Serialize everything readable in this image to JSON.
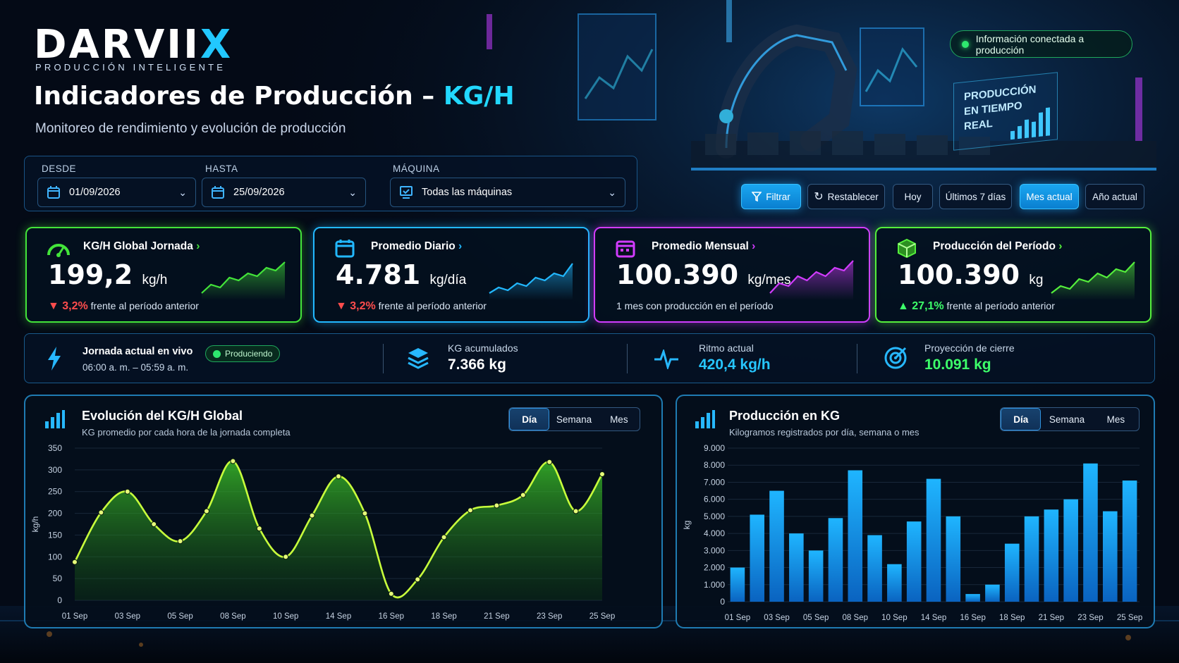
{
  "header": {
    "logo_main": "DARVII",
    "logo_accent": "X",
    "logo_tagline": "PRODUCCIÓN INTELIGENTE",
    "title_main": "Indicadores de Producción – ",
    "title_accent": "KG/H",
    "subtitle": "Monitoreo de rendimiento y evolución de producción",
    "status": "Información conectada a producción",
    "holo_line1": "PRODUCCIÓN",
    "holo_line2": "EN TIEMPO REAL"
  },
  "filters": {
    "desde_label": "DESDE",
    "desde_value": "01/09/2026",
    "hasta_label": "HASTA",
    "hasta_value": "25/09/2026",
    "maquina_label": "MÁQUINA",
    "maquina_value": "Todas las máquinas"
  },
  "buttons": {
    "filtrar": "Filtrar",
    "restablecer": "Restablecer",
    "hoy": "Hoy",
    "ultimos7": "Últimos 7 días",
    "mes_actual": "Mes actual",
    "anio_actual": "Año actual",
    "active": "Mes actual"
  },
  "kpis": [
    {
      "title": "KG/H Global Jornada",
      "value": "199,2",
      "unit": "kg/h",
      "delta": "▼ 3,2%",
      "delta_dir": "down",
      "note": "frente al período anterior",
      "color": "#43e43a",
      "icon": "gauge-icon"
    },
    {
      "title": "Promedio Diario",
      "value": "4.781",
      "unit": "kg/día",
      "delta": "▼ 3,2%",
      "delta_dir": "down",
      "note": "frente al período anterior",
      "color": "#22b8ff",
      "icon": "calendar-icon"
    },
    {
      "title": "Promedio Mensual",
      "value": "100.390",
      "unit": "kg/mes",
      "delta": "",
      "delta_dir": "none",
      "note": "1 mes con producción en el período",
      "color": "#d23cff",
      "icon": "calendar-month-icon"
    },
    {
      "title": "Producción del Período",
      "value": "100.390",
      "unit": "kg",
      "delta": "▲ 27,1%",
      "delta_dir": "up",
      "note": "frente al período anterior",
      "color": "#55ef3c",
      "icon": "box-icon"
    }
  ],
  "live": {
    "title": "Jornada actual en vivo",
    "badge": "Produciendo",
    "hours": "06:00 a. m. – 05:59 a. m.",
    "acum_label": "KG acumulados",
    "acum_value": "7.366 kg",
    "ritmo_label": "Ritmo actual",
    "ritmo_value": "420,4 kg/h",
    "proy_label": "Proyección de cierre",
    "proy_value": "10.091 kg"
  },
  "chart_data": [
    {
      "type": "area",
      "title": "Evolución del KG/H Global",
      "subtitle": "KG promedio por cada hora de la jornada completa",
      "ylabel": "kg/h",
      "ylim": [
        0,
        350
      ],
      "yticks": [
        "0",
        "50",
        "100",
        "150",
        "200",
        "250",
        "300",
        "350"
      ],
      "x_tick_labels": [
        "01 Sep",
        "03 Sep",
        "05 Sep",
        "08 Sep",
        "10 Sep",
        "14 Sep",
        "16 Sep",
        "18 Sep",
        "21 Sep",
        "23 Sep",
        "25 Sep"
      ],
      "values": [
        88,
        202,
        250,
        175,
        136,
        205,
        320,
        165,
        100,
        195,
        285,
        200,
        15,
        48,
        145,
        207,
        218,
        242,
        318,
        205,
        290
      ],
      "tabs": [
        "Día",
        "Semana",
        "Mes"
      ],
      "active_tab": "Día",
      "color": "#c8ff3c"
    },
    {
      "type": "bar",
      "title": "Producción en KG",
      "subtitle": "Kilogramos registrados por día, semana o mes",
      "ylabel": "kg",
      "ylim": [
        0,
        9000
      ],
      "yticks": [
        "0",
        "1.000",
        "2.000",
        "3.000",
        "4.000",
        "5.000",
        "6.000",
        "7.000",
        "8.000",
        "9.000"
      ],
      "x_tick_labels": [
        "01 Sep",
        "03 Sep",
        "05 Sep",
        "08 Sep",
        "10 Sep",
        "14 Sep",
        "16 Sep",
        "18 Sep",
        "21 Sep",
        "23 Sep",
        "25 Sep"
      ],
      "values": [
        2000,
        5100,
        6500,
        4000,
        3000,
        4900,
        7700,
        3900,
        2200,
        4700,
        7200,
        5000,
        450,
        1000,
        3400,
        5000,
        5400,
        6000,
        8100,
        5300,
        7100
      ],
      "tabs": [
        "Día",
        "Semana",
        "Mes"
      ],
      "active_tab": "Día",
      "color": "#1ea8ff"
    }
  ]
}
